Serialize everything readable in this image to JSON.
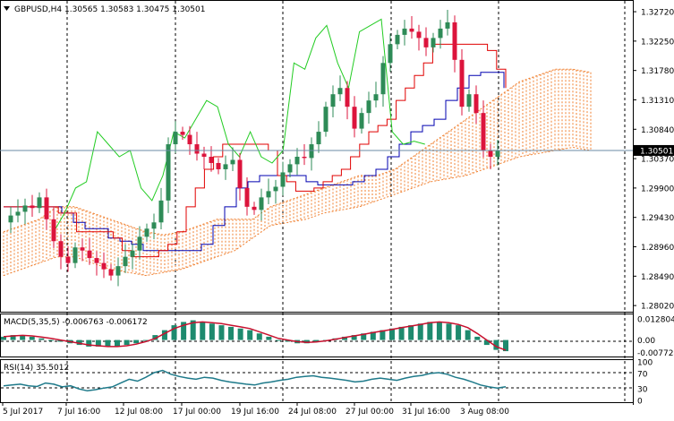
{
  "header": {
    "arrow_icon": "triangle-down-icon",
    "title": "GBPUSD,H4  1.30565 1.30583 1.30475 1.30501"
  },
  "main_price_axis": [
    "1.32720",
    "1.32250",
    "1.31780",
    "1.31310",
    "1.30840",
    "1.30370",
    "1.29900",
    "1.29430",
    "1.28960",
    "1.28490",
    "1.28020"
  ],
  "current_price": "1.30501",
  "macd": {
    "label": "MACD(5,35,5) -0.006763 -0.006172",
    "axis": [
      "0.012804",
      "0.00",
      "-0.007724"
    ]
  },
  "rsi": {
    "label": "RSI(14) 35.5012",
    "axis": [
      "100",
      "70",
      "30",
      "0"
    ]
  },
  "time_axis": [
    "5 Jul 2017",
    "7 Jul 16:00",
    "12 Jul 08:00",
    "17 Jul 00:00",
    "19 Jul 16:00",
    "24 Jul 08:00",
    "27 Jul 00:00",
    "31 Jul 16:00",
    "3 Aug 08:00"
  ],
  "colors": {
    "bull": "#2e8b57",
    "bear": "#dc143c",
    "tenkan": "#e00000",
    "kijun": "#0000b0",
    "chikou": "#22cc22",
    "cloud": "#f08030",
    "macd_hist": "#1e8a6e",
    "macd_signal": "#c8102e",
    "rsi_line": "#1e7a8a",
    "grid": "#000000"
  },
  "chart_data": [
    {
      "type": "candlestick",
      "title": "GBPUSD,H4",
      "ylim": [
        1.2795,
        1.3285
      ],
      "x_ticks": [
        "5 Jul 2017",
        "7 Jul 16:00",
        "12 Jul 08:00",
        "17 Jul 00:00",
        "19 Jul 16:00",
        "24 Jul 08:00",
        "27 Jul 00:00",
        "31 Jul 16:00",
        "3 Aug 08:00"
      ],
      "close_path": [
        1.2935,
        1.2946,
        1.2952,
        1.2962,
        1.2958,
        1.2975,
        1.294,
        1.2905,
        1.288,
        1.287,
        1.2895,
        1.289,
        1.2878,
        1.287,
        1.286,
        1.285,
        1.2865,
        1.288,
        1.289,
        1.2912,
        1.2925,
        1.2935,
        1.297,
        1.306,
        1.308,
        1.3075,
        1.306,
        1.3045,
        1.304,
        1.303,
        1.302,
        1.3028,
        1.3035,
        1.299,
        1.296,
        1.2955,
        1.2975,
        1.2985,
        1.2992,
        1.3015,
        1.3028,
        1.304,
        1.3038,
        1.306,
        1.308,
        1.312,
        1.314,
        1.315,
        1.312,
        1.3085,
        1.311,
        1.313,
        1.314,
        1.319,
        1.322,
        1.3235,
        1.3245,
        1.324,
        1.323,
        1.3215,
        1.323,
        1.3245,
        1.3255,
        1.3195,
        1.312,
        1.314,
        1.311,
        1.305,
        1.304,
        1.305
      ],
      "tenkan": [
        1.296,
        1.296,
        1.296,
        1.296,
        1.296,
        1.296,
        1.295,
        1.295,
        1.292,
        1.292,
        1.292,
        1.292,
        1.291,
        1.289,
        1.288,
        1.288,
        1.288,
        1.289,
        1.29,
        1.292,
        1.296,
        1.299,
        1.302,
        1.304,
        1.306,
        1.306,
        1.306,
        1.306,
        1.306,
        1.305,
        1.301,
        1.3,
        1.2985,
        1.2985,
        1.299,
        1.3,
        1.301,
        1.302,
        1.304,
        1.306,
        1.308,
        1.309,
        1.31,
        1.313,
        1.315,
        1.317,
        1.319,
        1.322,
        1.322,
        1.322,
        1.322,
        1.322,
        1.322,
        1.321,
        1.318,
        1.315
      ],
      "kijun": [
        1.296,
        1.296,
        1.296,
        1.296,
        1.296,
        1.295,
        1.2935,
        1.2925,
        1.2925,
        1.291,
        1.2905,
        1.29,
        1.289,
        1.289,
        1.289,
        1.289,
        1.289,
        1.29,
        1.293,
        1.296,
        1.299,
        1.3,
        1.301,
        1.301,
        1.301,
        1.301,
        1.3,
        1.2995,
        1.2995,
        1.2995,
        1.3,
        1.301,
        1.302,
        1.304,
        1.306,
        1.308,
        1.309,
        1.31,
        1.313,
        1.315,
        1.317,
        1.3175,
        1.3175,
        1.315
      ],
      "chikou": [
        1.292,
        1.295,
        1.299,
        1.3,
        1.308,
        1.306,
        1.304,
        1.305,
        1.299,
        1.297,
        1.301,
        1.308,
        1.307,
        1.31,
        1.313,
        1.312,
        1.306,
        1.304,
        1.308,
        1.304,
        1.303,
        1.305,
        1.319,
        1.318,
        1.323,
        1.325,
        1.319,
        1.315,
        1.324,
        1.325,
        1.326,
        1.308,
        1.306,
        1.3065,
        1.306
      ],
      "cloud_upper": [
        1.292,
        1.293,
        1.294,
        1.296,
        1.296,
        1.295,
        1.294,
        1.293,
        1.292,
        1.2915,
        1.292,
        1.293,
        1.294,
        1.294,
        1.294,
        1.296,
        1.297,
        1.298,
        1.299,
        1.3,
        1.301,
        1.301,
        1.302,
        1.304,
        1.306,
        1.308,
        1.31,
        1.312,
        1.314,
        1.316,
        1.317,
        1.318,
        1.318,
        1.3175
      ],
      "cloud_lower": [
        1.285,
        1.286,
        1.287,
        1.288,
        1.288,
        1.287,
        1.286,
        1.2855,
        1.285,
        1.2855,
        1.286,
        1.287,
        1.288,
        1.289,
        1.291,
        1.293,
        1.2935,
        1.294,
        1.295,
        1.2955,
        1.296,
        1.297,
        1.298,
        1.299,
        1.3,
        1.3005,
        1.301,
        1.302,
        1.303,
        1.304,
        1.3045,
        1.305,
        1.3055,
        1.305
      ],
      "current_price": 1.30501
    },
    {
      "type": "bar",
      "title": "MACD(5,35,5)",
      "ylim": [
        -0.0095,
        0.0145
      ],
      "values": [
        0.002,
        0.003,
        0.003,
        0.002,
        0.001,
        0.0,
        -0.001,
        -0.002,
        -0.003,
        -0.004,
        -0.004,
        -0.004,
        -0.004,
        -0.003,
        -0.002,
        0.0,
        0.003,
        0.006,
        0.009,
        0.011,
        0.012,
        0.011,
        0.01,
        0.009,
        0.008,
        0.007,
        0.006,
        0.004,
        0.002,
        0.0,
        -0.001,
        -0.002,
        -0.002,
        -0.001,
        0.0,
        0.001,
        0.002,
        0.003,
        0.004,
        0.005,
        0.006,
        0.007,
        0.008,
        0.009,
        0.01,
        0.011,
        0.011,
        0.01,
        0.009,
        0.006,
        0.002,
        -0.003,
        -0.006,
        -0.0068
      ],
      "signal": [
        0.002,
        0.0025,
        0.0028,
        0.0025,
        0.0018,
        0.001,
        0.0,
        -0.001,
        -0.002,
        -0.003,
        -0.0035,
        -0.004,
        -0.004,
        -0.0035,
        -0.0025,
        -0.001,
        0.001,
        0.004,
        0.007,
        0.009,
        0.0105,
        0.011,
        0.0105,
        0.01,
        0.009,
        0.008,
        0.007,
        0.005,
        0.003,
        0.001,
        0.0,
        -0.001,
        -0.0015,
        -0.0012,
        -0.0005,
        0.0005,
        0.0015,
        0.0025,
        0.0035,
        0.0045,
        0.0055,
        0.0065,
        0.0075,
        0.0085,
        0.0095,
        0.0105,
        0.011,
        0.0105,
        0.0095,
        0.0075,
        0.004,
        0.0,
        -0.004,
        -0.0062
      ]
    },
    {
      "type": "line",
      "title": "RSI(14)",
      "ylim": [
        0,
        100
      ],
      "levels": [
        70,
        30
      ],
      "values": [
        38,
        40,
        42,
        38,
        36,
        45,
        42,
        35,
        38,
        30,
        25,
        28,
        32,
        35,
        45,
        55,
        50,
        60,
        72,
        78,
        68,
        62,
        58,
        55,
        60,
        58,
        52,
        48,
        45,
        42,
        40,
        45,
        48,
        52,
        55,
        60,
        62,
        64,
        60,
        58,
        55,
        52,
        48,
        50,
        55,
        58,
        55,
        52,
        58,
        62,
        65,
        70,
        72,
        68,
        60,
        55,
        48,
        40,
        35,
        32,
        35.5
      ]
    }
  ]
}
